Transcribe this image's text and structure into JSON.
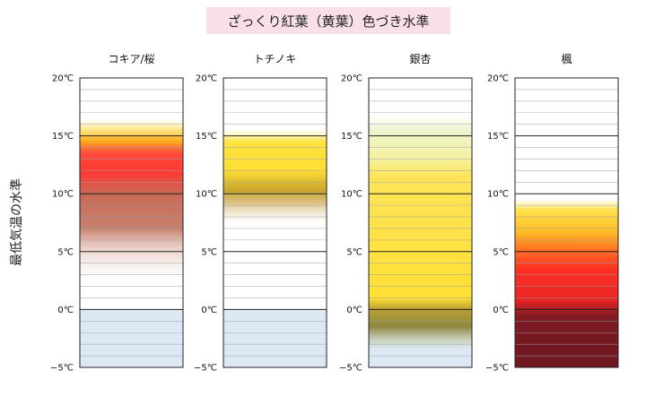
{
  "chart_data": {
    "type": "heatmap",
    "title": "ざっくり紅葉（黄葉）色づき水準",
    "ylabel": "最低気温の水準",
    "unit": "℃",
    "ylim": [
      -5,
      20
    ],
    "yticks": [
      {
        "value": 20,
        "label": "20℃"
      },
      {
        "value": 15,
        "label": "15℃"
      },
      {
        "value": 10,
        "label": "10℃"
      },
      {
        "value": 5,
        "label": "5℃"
      },
      {
        "value": 0,
        "label": "0℃"
      },
      {
        "value": -5,
        "label": "−5℃"
      }
    ],
    "minor_step": 1,
    "below_zero_color": "#dce8f4",
    "columns": [
      {
        "name": "コキア/桜",
        "stops": [
          {
            "t": 16.5,
            "color": "#fff6c0",
            "a": 0
          },
          {
            "t": 15.6,
            "color": "#ffe680",
            "a": 0.9
          },
          {
            "t": 14.6,
            "color": "#ffb020",
            "a": 1
          },
          {
            "t": 13.5,
            "color": "#ff4a3a",
            "a": 1
          },
          {
            "t": 11.8,
            "color": "#ff3a34",
            "a": 1
          },
          {
            "t": 10.0,
            "color": "#c86a55",
            "a": 1
          },
          {
            "t": 7.0,
            "color": "#c47a66",
            "a": 0.95
          },
          {
            "t": 5.2,
            "color": "#d8a898",
            "a": 0.5
          },
          {
            "t": 2.5,
            "color": "#f0ddd6",
            "a": 0
          }
        ]
      },
      {
        "name": "トチノキ",
        "stops": [
          {
            "t": 15.6,
            "color": "#fff2a0",
            "a": 0
          },
          {
            "t": 14.5,
            "color": "#fde340",
            "a": 1
          },
          {
            "t": 12.0,
            "color": "#fdde34",
            "a": 1
          },
          {
            "t": 10.3,
            "color": "#c7a52c",
            "a": 1
          },
          {
            "t": 9.3,
            "color": "#d0ae5a",
            "a": 0.8
          },
          {
            "t": 7.4,
            "color": "#ede0c0",
            "a": 0
          }
        ]
      },
      {
        "name": "銀杏",
        "stops": [
          {
            "t": 16.8,
            "color": "#f3f7d8",
            "a": 0
          },
          {
            "t": 15.5,
            "color": "#eff4d0",
            "a": 1
          },
          {
            "t": 13.0,
            "color": "#f6f2a0",
            "a": 1
          },
          {
            "t": 11.5,
            "color": "#ffe45a",
            "a": 1
          },
          {
            "t": 1.0,
            "color": "#ffe034",
            "a": 1
          },
          {
            "t": 0.0,
            "color": "#b9a036",
            "a": 1
          },
          {
            "t": -1.5,
            "color": "#8e883e",
            "a": 1
          },
          {
            "t": -3.5,
            "color": "#c8cc98",
            "a": 0
          }
        ]
      },
      {
        "name": "楓",
        "stops": [
          {
            "t": 9.6,
            "color": "#fff2a0",
            "a": 0
          },
          {
            "t": 8.6,
            "color": "#ffe04a",
            "a": 1
          },
          {
            "t": 6.8,
            "color": "#ffc028",
            "a": 1
          },
          {
            "t": 5.0,
            "color": "#ff6a24",
            "a": 1
          },
          {
            "t": 3.5,
            "color": "#ff3024",
            "a": 1
          },
          {
            "t": 0.8,
            "color": "#e82424",
            "a": 1
          },
          {
            "t": -0.6,
            "color": "#7e1a22",
            "a": 1
          },
          {
            "t": -5.0,
            "color": "#6e1820",
            "a": 1
          }
        ]
      }
    ]
  }
}
